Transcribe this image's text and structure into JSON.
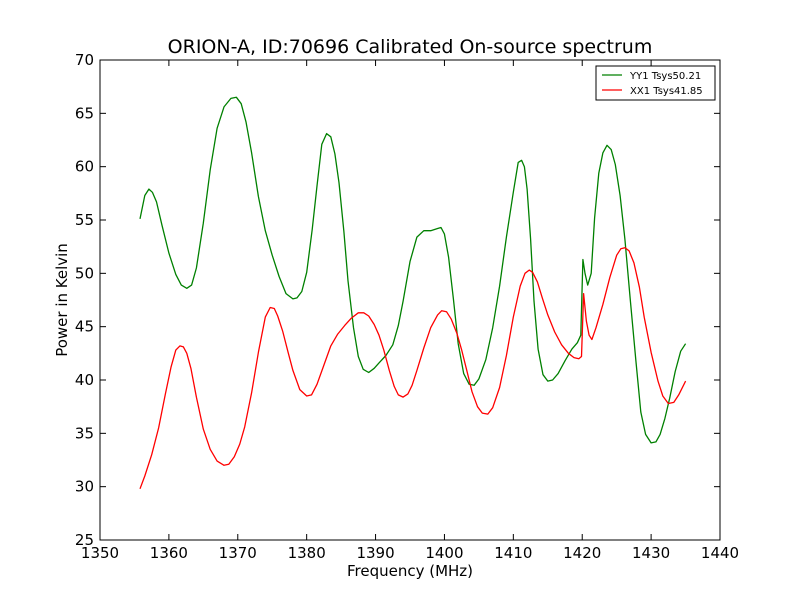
{
  "chart_data": {
    "type": "line",
    "title": "ORION-A, ID:70696 Calibrated On-source spectrum",
    "xlabel": "Frequency (MHz)",
    "ylabel": "Power in Kelvin",
    "xlim": [
      1350,
      1440
    ],
    "ylim": [
      25,
      70
    ],
    "xticks": [
      1350,
      1360,
      1370,
      1380,
      1390,
      1400,
      1410,
      1420,
      1430,
      1440
    ],
    "yticks": [
      25,
      30,
      35,
      40,
      45,
      50,
      55,
      60,
      65,
      70
    ],
    "grid": false,
    "legend_position": "top-right",
    "series": [
      {
        "name": "YY1 Tsys50.21",
        "color": "#008000",
        "x": [
          1355.8,
          1356.5,
          1357.1,
          1357.6,
          1358.2,
          1359.0,
          1360.0,
          1361.0,
          1361.8,
          1362.6,
          1363.3,
          1364.0,
          1365.0,
          1366.0,
          1367.0,
          1368.0,
          1369.0,
          1369.8,
          1370.5,
          1371.2,
          1372.0,
          1373.0,
          1374.0,
          1375.0,
          1376.0,
          1377.0,
          1378.0,
          1378.6,
          1379.3,
          1380.0,
          1380.8,
          1381.5,
          1382.2,
          1382.9,
          1383.5,
          1384.1,
          1384.7,
          1385.4,
          1386.0,
          1386.8,
          1387.5,
          1388.2,
          1389.0,
          1389.8,
          1390.5,
          1391.5,
          1392.5,
          1393.3,
          1394.0,
          1395.0,
          1396.0,
          1397.0,
          1398.0,
          1399.0,
          1399.5,
          1400.0,
          1400.6,
          1401.3,
          1402.0,
          1402.8,
          1403.6,
          1404.3,
          1405.0,
          1406.0,
          1407.0,
          1408.0,
          1409.0,
          1410.0,
          1410.7,
          1411.2,
          1411.6,
          1412.0,
          1412.5,
          1413.0,
          1413.6,
          1414.3,
          1415.0,
          1415.7,
          1416.5,
          1417.5,
          1418.5,
          1419.3,
          1419.8,
          1420.1,
          1420.4,
          1420.8,
          1421.3,
          1421.8,
          1422.4,
          1423.0,
          1423.6,
          1424.2,
          1424.8,
          1425.5,
          1426.2,
          1427.0,
          1427.8,
          1428.5,
          1429.2,
          1430.0,
          1430.7,
          1431.3,
          1432.0,
          1432.7,
          1433.5,
          1434.3,
          1435.0
        ],
        "values": [
          55.1,
          57.3,
          57.9,
          57.6,
          56.7,
          54.5,
          51.9,
          49.9,
          48.9,
          48.6,
          48.9,
          50.5,
          54.7,
          59.7,
          63.6,
          65.6,
          66.4,
          66.5,
          65.9,
          64.2,
          61.3,
          57.2,
          54.0,
          51.7,
          49.7,
          48.1,
          47.6,
          47.7,
          48.3,
          50.1,
          54.1,
          58.2,
          62.1,
          63.1,
          62.8,
          61.2,
          58.5,
          53.9,
          49.3,
          44.9,
          42.2,
          41.0,
          40.7,
          41.1,
          41.6,
          42.3,
          43.3,
          45.1,
          47.4,
          51.1,
          53.4,
          54.0,
          54.0,
          54.2,
          54.3,
          53.7,
          51.5,
          47.6,
          43.4,
          40.6,
          39.6,
          39.5,
          40.1,
          41.9,
          44.9,
          48.8,
          53.4,
          57.6,
          60.4,
          60.6,
          60.0,
          57.9,
          53.2,
          47.4,
          42.9,
          40.5,
          39.9,
          40.0,
          40.6,
          41.8,
          42.9,
          43.5,
          44.2,
          51.3,
          50.0,
          48.9,
          50.0,
          55.2,
          59.4,
          61.3,
          62.0,
          61.6,
          60.2,
          57.3,
          53.2,
          47.4,
          41.7,
          37.0,
          34.9,
          34.1,
          34.2,
          34.9,
          36.4,
          38.3,
          40.8,
          42.7,
          43.4
        ]
      },
      {
        "name": "XX1 Tsys41.85",
        "color": "#ff0000",
        "x": [
          1355.8,
          1356.5,
          1357.5,
          1358.5,
          1359.5,
          1360.3,
          1361.0,
          1361.6,
          1362.1,
          1362.6,
          1363.2,
          1364.0,
          1365.0,
          1366.0,
          1367.0,
          1368.0,
          1368.7,
          1369.5,
          1370.3,
          1371.0,
          1372.0,
          1373.0,
          1374.0,
          1374.7,
          1375.3,
          1375.8,
          1376.5,
          1377.3,
          1378.0,
          1379.0,
          1380.0,
          1380.7,
          1381.5,
          1382.5,
          1383.5,
          1384.5,
          1385.5,
          1386.5,
          1387.5,
          1388.3,
          1389.0,
          1389.8,
          1390.5,
          1391.2,
          1392.0,
          1392.7,
          1393.3,
          1394.0,
          1394.7,
          1395.3,
          1396.0,
          1397.0,
          1398.0,
          1399.0,
          1399.6,
          1400.3,
          1401.0,
          1401.8,
          1402.5,
          1403.2,
          1404.0,
          1404.8,
          1405.5,
          1406.3,
          1407.0,
          1408.0,
          1409.0,
          1410.0,
          1411.0,
          1411.7,
          1412.3,
          1412.8,
          1413.5,
          1414.2,
          1415.0,
          1416.0,
          1417.0,
          1418.0,
          1418.8,
          1419.5,
          1419.9,
          1420.2,
          1420.6,
          1421.0,
          1421.4,
          1422.0,
          1423.0,
          1424.0,
          1425.0,
          1425.6,
          1426.2,
          1426.8,
          1427.5,
          1428.3,
          1429.0,
          1430.0,
          1431.0,
          1431.7,
          1432.5,
          1433.3,
          1434.0,
          1435.0
        ],
        "values": [
          29.8,
          31.0,
          33.0,
          35.5,
          38.7,
          41.2,
          42.8,
          43.2,
          43.1,
          42.5,
          41.1,
          38.4,
          35.4,
          33.5,
          32.4,
          32.0,
          32.1,
          32.8,
          34.0,
          35.6,
          38.8,
          42.6,
          45.9,
          46.8,
          46.7,
          46.0,
          44.6,
          42.6,
          40.9,
          39.1,
          38.5,
          38.6,
          39.6,
          41.4,
          43.2,
          44.3,
          45.1,
          45.8,
          46.3,
          46.3,
          46.0,
          45.2,
          44.2,
          42.8,
          40.9,
          39.4,
          38.6,
          38.4,
          38.7,
          39.5,
          40.9,
          43.0,
          44.9,
          46.1,
          46.5,
          46.4,
          45.7,
          44.4,
          42.8,
          41.0,
          38.9,
          37.5,
          36.9,
          36.8,
          37.4,
          39.3,
          42.3,
          45.9,
          48.8,
          50.0,
          50.3,
          50.1,
          49.2,
          47.7,
          46.1,
          44.5,
          43.3,
          42.5,
          42.1,
          42.0,
          42.2,
          48.1,
          45.5,
          44.2,
          43.8,
          44.9,
          47.1,
          49.6,
          51.7,
          52.3,
          52.4,
          52.1,
          51.0,
          48.7,
          45.9,
          42.6,
          39.9,
          38.5,
          37.8,
          37.9,
          38.6,
          39.9
        ]
      }
    ]
  }
}
